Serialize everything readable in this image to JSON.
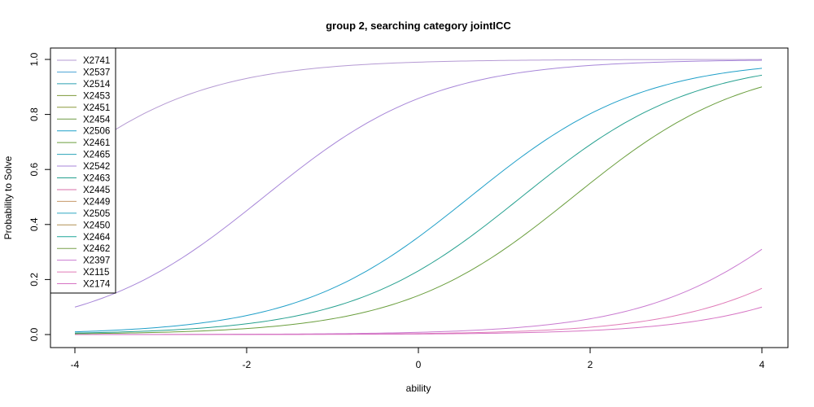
{
  "chart_data": {
    "type": "line",
    "title": "group 2, searching category jointICC",
    "xlabel": "ability",
    "ylabel": "Probability to Solve",
    "xlim": [
      -4,
      4
    ],
    "ylim": [
      0,
      1
    ],
    "xticks": [
      -4,
      -2,
      0,
      2,
      4
    ],
    "yticks": [
      0.0,
      0.2,
      0.4,
      0.6,
      0.8,
      1.0
    ],
    "xtick_labels": [
      "-4",
      "-2",
      "0",
      "2",
      "4"
    ],
    "ytick_labels": [
      "0.0",
      "0.2",
      "0.4",
      "0.6",
      "0.8",
      "1.0"
    ],
    "grid": false,
    "legend_position": "top-left",
    "series": [
      {
        "name": "X2741",
        "color": "#b59ad3",
        "difficulty": -4.6
      },
      {
        "name": "X2537",
        "color": "#4fa6d6",
        "difficulty": null
      },
      {
        "name": "X2514",
        "color": "#2b9fb0",
        "difficulty": null
      },
      {
        "name": "X2453",
        "color": "#7d9a3a",
        "difficulty": null
      },
      {
        "name": "X2451",
        "color": "#8a9a3c",
        "difficulty": null
      },
      {
        "name": "X2454",
        "color": "#6f9a43",
        "difficulty": null
      },
      {
        "name": "X2506",
        "color": "#1f9fc8",
        "difficulty": 0.6
      },
      {
        "name": "X2461",
        "color": "#6a9e3d",
        "difficulty": 1.8
      },
      {
        "name": "X2465",
        "color": "#2aa3b8",
        "difficulty": null
      },
      {
        "name": "X2542",
        "color": "#a786d8",
        "difficulty": -1.8
      },
      {
        "name": "X2463",
        "color": "#25a08f",
        "difficulty": 1.2
      },
      {
        "name": "X2445",
        "color": "#d96fa8",
        "difficulty": null
      },
      {
        "name": "X2449",
        "color": "#c79a6a",
        "difficulty": null
      },
      {
        "name": "X2505",
        "color": "#2fa7c2",
        "difficulty": null
      },
      {
        "name": "X2450",
        "color": "#b08f52",
        "difficulty": null
      },
      {
        "name": "X2464",
        "color": "#1fa599",
        "difficulty": null
      },
      {
        "name": "X2462",
        "color": "#79a04a",
        "difficulty": null
      },
      {
        "name": "X2397",
        "color": "#c97ad0",
        "difficulty": 4.8
      },
      {
        "name": "X2115",
        "color": "#e07ab7",
        "difficulty": 5.6
      },
      {
        "name": "X2174",
        "color": "#d673c3",
        "difficulty": 6.2
      }
    ]
  }
}
